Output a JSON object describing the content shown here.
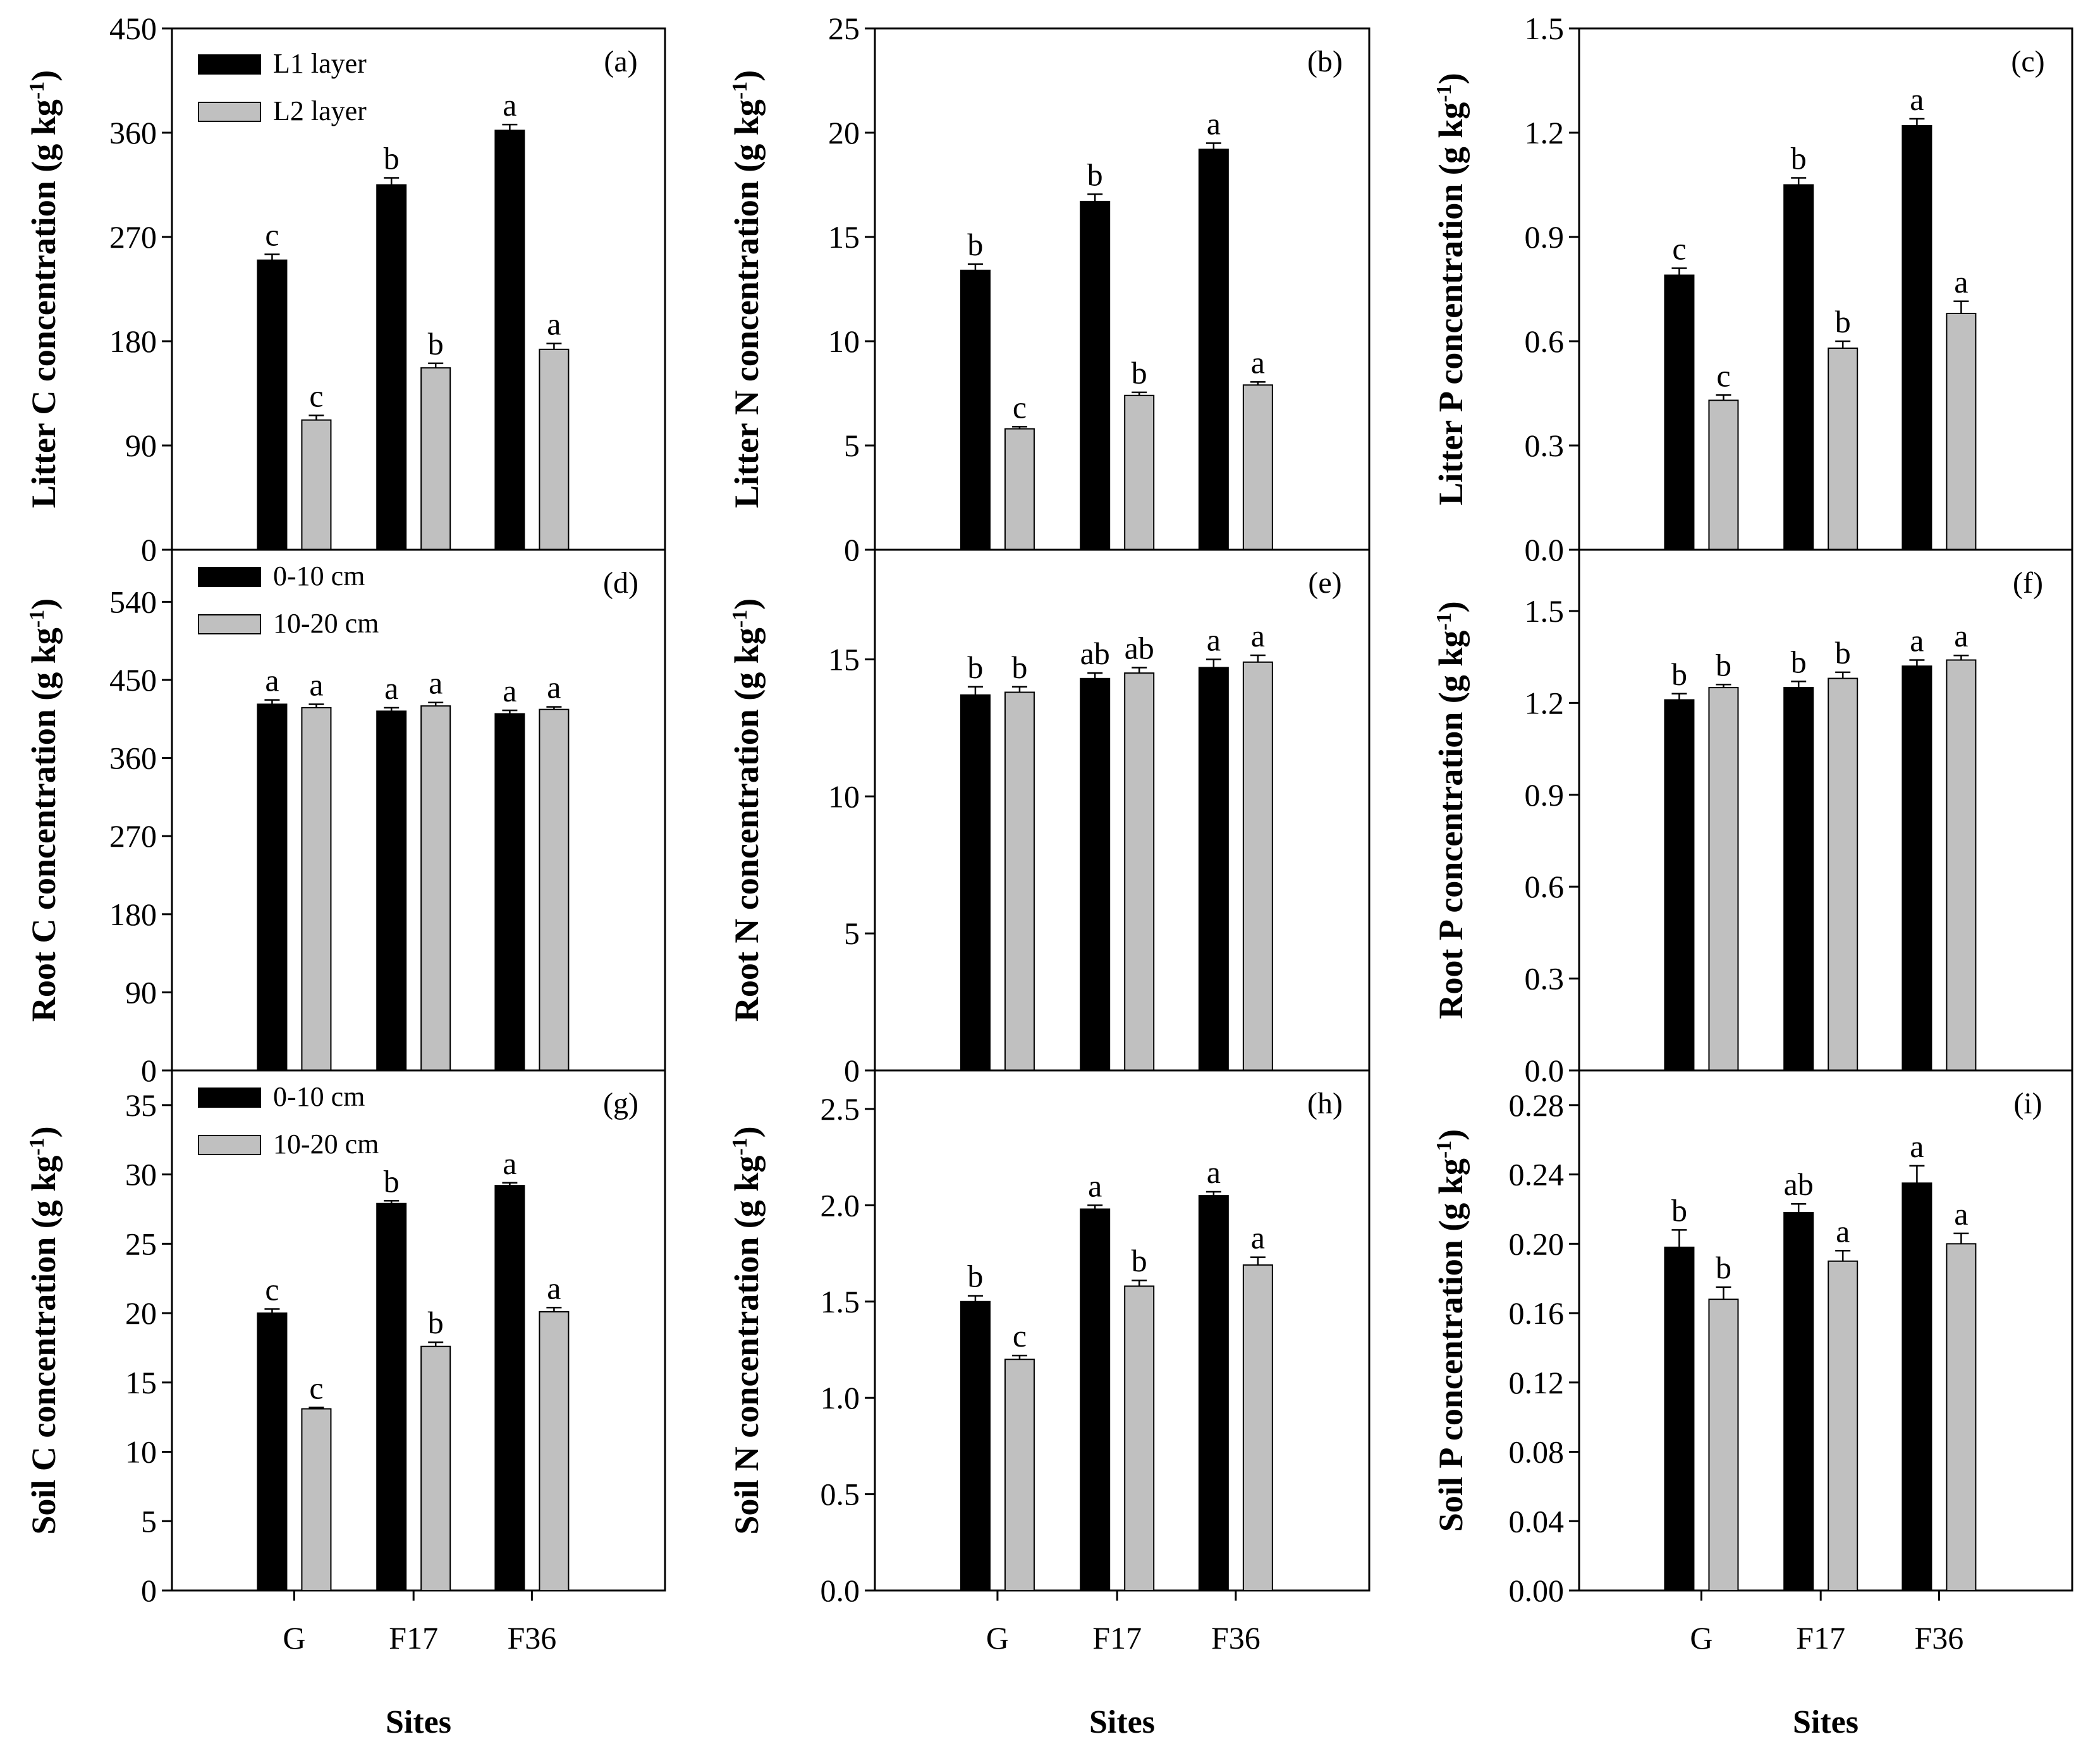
{
  "figure": {
    "x_axis_title": "Sites",
    "sites": [
      "G",
      "F17",
      "F36"
    ],
    "colors": {
      "series1": "#000000",
      "series2": "#c0c0c0",
      "axis": "#000000"
    }
  },
  "chart_data": [
    {
      "id": "a",
      "type": "bar",
      "panel_label": "(a)",
      "ylabel": "Litter C concentration",
      "unit": "g kg",
      "unit_exp": "-1",
      "ylim": [
        0,
        450
      ],
      "yticks": [
        "0",
        "90",
        "180",
        "270",
        "360",
        "450"
      ],
      "categories": [
        "G",
        "F17",
        "F36"
      ],
      "legend": [
        "L1 layer",
        "L2 layer"
      ],
      "series": [
        {
          "name": "L1 layer",
          "values": [
            250,
            315,
            362
          ],
          "errors": [
            5,
            6,
            5
          ],
          "letters": [
            "c",
            "b",
            "a"
          ]
        },
        {
          "name": "L2 layer",
          "values": [
            112,
            157,
            173
          ],
          "errors": [
            4,
            4,
            5
          ],
          "letters": [
            "c",
            "b",
            "a"
          ]
        }
      ]
    },
    {
      "id": "b",
      "type": "bar",
      "panel_label": "(b)",
      "ylabel": "Litter N concentration",
      "unit": "g kg",
      "unit_exp": "-1",
      "ylim": [
        0,
        25
      ],
      "yticks": [
        "0",
        "5",
        "10",
        "15",
        "20",
        "25"
      ],
      "categories": [
        "G",
        "F17",
        "F36"
      ],
      "series": [
        {
          "name": "L1 layer",
          "values": [
            13.4,
            16.7,
            19.2
          ],
          "errors": [
            0.3,
            0.35,
            0.3
          ],
          "letters": [
            "b",
            "b",
            "a"
          ]
        },
        {
          "name": "L2 layer",
          "values": [
            5.8,
            7.4,
            7.9
          ],
          "errors": [
            0.1,
            0.15,
            0.15
          ],
          "letters": [
            "c",
            "b",
            "a"
          ]
        }
      ]
    },
    {
      "id": "c",
      "type": "bar",
      "panel_label": "(c)",
      "ylabel": "Litter P concentration",
      "unit": "g kg",
      "unit_exp": "-1",
      "ylim": [
        0,
        1.5
      ],
      "yticks": [
        "0.0",
        "0.3",
        "0.6",
        "0.9",
        "1.2",
        "1.5"
      ],
      "categories": [
        "G",
        "F17",
        "F36"
      ],
      "series": [
        {
          "name": "L1 layer",
          "values": [
            0.79,
            1.05,
            1.22
          ],
          "errors": [
            0.02,
            0.02,
            0.02
          ],
          "letters": [
            "c",
            "b",
            "a"
          ]
        },
        {
          "name": "L2 layer",
          "values": [
            0.43,
            0.58,
            0.68
          ],
          "errors": [
            0.015,
            0.02,
            0.035
          ],
          "letters": [
            "c",
            "b",
            "a"
          ]
        }
      ]
    },
    {
      "id": "d",
      "type": "bar",
      "panel_label": "(d)",
      "ylabel": "Root C concentration",
      "unit": "g kg",
      "unit_exp": "-1",
      "ylim": [
        0,
        600
      ],
      "yticks": [
        "0",
        "90",
        "180",
        "270",
        "360",
        "450",
        "540"
      ],
      "categories": [
        "G",
        "F17",
        "F36"
      ],
      "legend": [
        "0-10 cm",
        "10-20 cm"
      ],
      "series": [
        {
          "name": "0-10 cm",
          "values": [
            422,
            414,
            411
          ],
          "errors": [
            5,
            4,
            4
          ],
          "letters": [
            "a",
            "a",
            "a"
          ]
        },
        {
          "name": "10-20 cm",
          "values": [
            418,
            420,
            416
          ],
          "errors": [
            4,
            4,
            3
          ],
          "letters": [
            "a",
            "a",
            "a"
          ]
        }
      ]
    },
    {
      "id": "e",
      "type": "bar",
      "panel_label": "(e)",
      "ylabel": "Root N concentration",
      "unit": "g kg",
      "unit_exp": "-1",
      "ylim": [
        0,
        19
      ],
      "yticks": [
        "0",
        "5",
        "10",
        "15"
      ],
      "categories": [
        "G",
        "F17",
        "F36"
      ],
      "series": [
        {
          "name": "0-10 cm",
          "values": [
            13.7,
            14.3,
            14.7
          ],
          "errors": [
            0.3,
            0.2,
            0.3
          ],
          "letters": [
            "b",
            "ab",
            "a"
          ]
        },
        {
          "name": "10-20 cm",
          "values": [
            13.8,
            14.5,
            14.9
          ],
          "errors": [
            0.2,
            0.2,
            0.25
          ],
          "letters": [
            "b",
            "ab",
            "a"
          ]
        }
      ]
    },
    {
      "id": "f",
      "type": "bar",
      "panel_label": "(f)",
      "ylabel": "Root P concentration",
      "unit": "g kg",
      "unit_exp": "-1",
      "ylim": [
        0,
        1.7
      ],
      "yticks": [
        "0.0",
        "0.3",
        "0.6",
        "0.9",
        "1.2",
        "1.5"
      ],
      "categories": [
        "G",
        "F17",
        "F36"
      ],
      "series": [
        {
          "name": "0-10 cm",
          "values": [
            1.21,
            1.25,
            1.32
          ],
          "errors": [
            0.02,
            0.02,
            0.02
          ],
          "letters": [
            "b",
            "b",
            "a"
          ]
        },
        {
          "name": "10-20 cm",
          "values": [
            1.25,
            1.28,
            1.34
          ],
          "errors": [
            0.01,
            0.02,
            0.015
          ],
          "letters": [
            "b",
            "b",
            "a"
          ]
        }
      ]
    },
    {
      "id": "g",
      "type": "bar",
      "panel_label": "(g)",
      "ylabel": "Soil C concentration",
      "unit": "g kg",
      "unit_exp": "-1",
      "ylim": [
        0,
        37.5
      ],
      "yticks": [
        "0",
        "5",
        "10",
        "15",
        "20",
        "25",
        "30",
        "35"
      ],
      "categories": [
        "G",
        "F17",
        "F36"
      ],
      "legend": [
        "0-10 cm",
        "10-20 cm"
      ],
      "series": [
        {
          "name": "0-10 cm",
          "values": [
            20.0,
            27.9,
            29.2
          ],
          "errors": [
            0.3,
            0.2,
            0.2
          ],
          "letters": [
            "c",
            "b",
            "a"
          ]
        },
        {
          "name": "10-20 cm",
          "values": [
            13.1,
            17.6,
            20.1
          ],
          "errors": [
            0.1,
            0.3,
            0.3
          ],
          "letters": [
            "c",
            "b",
            "a"
          ]
        }
      ]
    },
    {
      "id": "h",
      "type": "bar",
      "panel_label": "(h)",
      "ylabel": "Soil N concentration",
      "unit": "g kg",
      "unit_exp": "-1",
      "ylim": [
        0,
        2.7
      ],
      "yticks": [
        "0.0",
        "0.5",
        "1.0",
        "1.5",
        "2.0",
        "2.5"
      ],
      "categories": [
        "G",
        "F17",
        "F36"
      ],
      "series": [
        {
          "name": "0-10 cm",
          "values": [
            1.5,
            1.98,
            2.05
          ],
          "errors": [
            0.03,
            0.02,
            0.02
          ],
          "letters": [
            "b",
            "a",
            "a"
          ]
        },
        {
          "name": "10-20 cm",
          "values": [
            1.2,
            1.58,
            1.69
          ],
          "errors": [
            0.02,
            0.03,
            0.04
          ],
          "letters": [
            "c",
            "b",
            "a"
          ]
        }
      ]
    },
    {
      "id": "i",
      "type": "bar",
      "panel_label": "(i)",
      "ylabel": "Soil P concentration",
      "unit": "g kg",
      "unit_exp": "-1",
      "ylim": [
        0,
        0.3
      ],
      "yticks": [
        "0.00",
        "0.04",
        "0.08",
        "0.12",
        "0.16",
        "0.20",
        "0.24",
        "0.28"
      ],
      "categories": [
        "G",
        "F17",
        "F36"
      ],
      "series": [
        {
          "name": "0-10 cm",
          "values": [
            0.198,
            0.218,
            0.235
          ],
          "errors": [
            0.01,
            0.005,
            0.01
          ],
          "letters": [
            "b",
            "ab",
            "a"
          ]
        },
        {
          "name": "10-20 cm",
          "values": [
            0.168,
            0.19,
            0.2
          ],
          "errors": [
            0.007,
            0.006,
            0.006
          ],
          "letters": [
            "b",
            "a",
            "a"
          ]
        }
      ]
    }
  ]
}
